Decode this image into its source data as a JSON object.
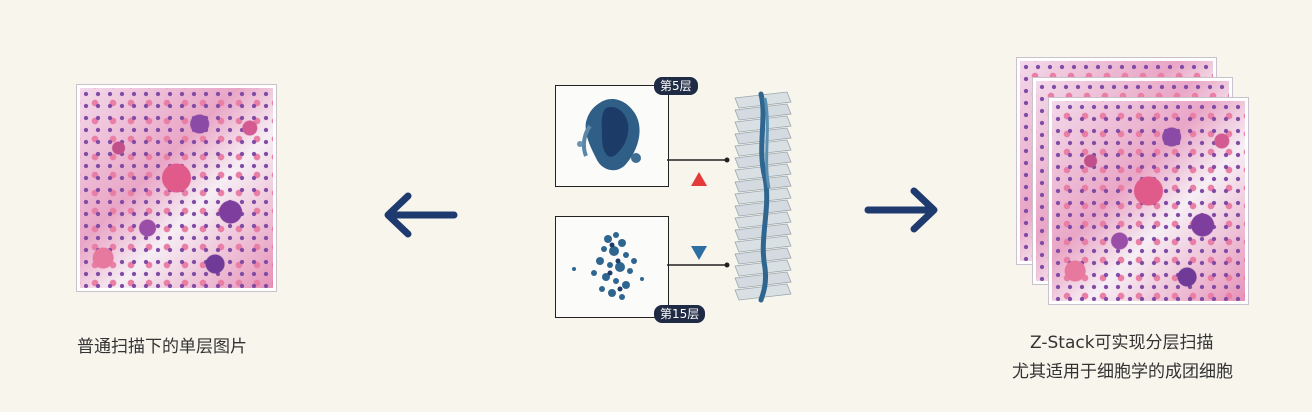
{
  "left_caption": "普通扫描下的单层图片",
  "right_caption_line1": "Z-Stack可实现分层扫描",
  "right_caption_line2": "尤其适用于细胞学的成团细胞",
  "top_layer_badge": "第5层",
  "bottom_layer_badge": "第15层",
  "colors": {
    "arrow": "#1f3a6e",
    "up_triangle": "#e53a3a",
    "down_triangle": "#2c6ea3",
    "background": "#f7f5ec"
  },
  "icons": {
    "left_arrow": "arrow-left-icon",
    "right_arrow": "arrow-right-icon",
    "up_marker": "triangle-up-icon",
    "down_marker": "triangle-down-icon"
  }
}
